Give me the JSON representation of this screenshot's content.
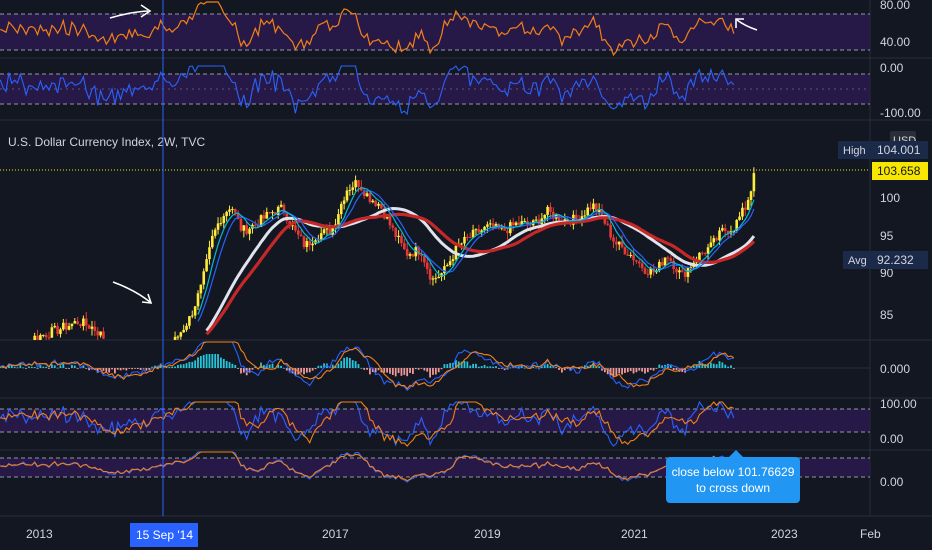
{
  "chart_data": {
    "type": "candlestick",
    "title": "U.S. Dollar Currency Index, 2W, TVC",
    "currency": "USD",
    "x_ticks": [
      "2013",
      "2017",
      "2019",
      "2021",
      "2023",
      "Feb"
    ],
    "crosshair_date": "15 Sep '14",
    "main_y_ticks": [
      85.0,
      90.0,
      95.0,
      100.0
    ],
    "main_ylim": [
      81.5,
      106.3
    ],
    "badges": [
      {
        "label": "High",
        "value": "104.001",
        "color": "#2a2e39"
      },
      {
        "label": "",
        "value": "103.658",
        "color": "#f7e600"
      },
      {
        "label": "Avg",
        "value": "92.232",
        "color": "#2a2e39"
      }
    ],
    "price_series": [
      {
        "t": 2012.1,
        "v": 80.0
      },
      {
        "t": 2012.6,
        "v": 81.5
      },
      {
        "t": 2013.0,
        "v": 82.8
      },
      {
        "t": 2013.3,
        "v": 84.0
      },
      {
        "t": 2013.5,
        "v": 83.2
      },
      {
        "t": 2013.8,
        "v": 80.5
      },
      {
        "t": 2014.2,
        "v": 79.8
      },
      {
        "t": 2014.6,
        "v": 81.5
      },
      {
        "t": 2014.8,
        "v": 84.5
      },
      {
        "t": 2014.95,
        "v": 88.5
      },
      {
        "t": 2015.1,
        "v": 95.0
      },
      {
        "t": 2015.2,
        "v": 97.5
      },
      {
        "t": 2015.35,
        "v": 99.5
      },
      {
        "t": 2015.5,
        "v": 96.0
      },
      {
        "t": 2015.7,
        "v": 97.0
      },
      {
        "t": 2015.9,
        "v": 98.5
      },
      {
        "t": 2016.05,
        "v": 99.0
      },
      {
        "t": 2016.2,
        "v": 96.0
      },
      {
        "t": 2016.35,
        "v": 94.0
      },
      {
        "t": 2016.5,
        "v": 95.5
      },
      {
        "t": 2016.7,
        "v": 96.0
      },
      {
        "t": 2016.9,
        "v": 101.5
      },
      {
        "t": 2017.05,
        "v": 102.5
      },
      {
        "t": 2017.2,
        "v": 100.5
      },
      {
        "t": 2017.35,
        "v": 99.5
      },
      {
        "t": 2017.5,
        "v": 96.5
      },
      {
        "t": 2017.7,
        "v": 93.0
      },
      {
        "t": 2017.9,
        "v": 93.5
      },
      {
        "t": 2018.05,
        "v": 89.5
      },
      {
        "t": 2018.2,
        "v": 90.5
      },
      {
        "t": 2018.4,
        "v": 94.0
      },
      {
        "t": 2018.6,
        "v": 95.5
      },
      {
        "t": 2018.8,
        "v": 96.5
      },
      {
        "t": 2019.0,
        "v": 96.0
      },
      {
        "t": 2019.2,
        "v": 97.0
      },
      {
        "t": 2019.4,
        "v": 96.8
      },
      {
        "t": 2019.6,
        "v": 98.5
      },
      {
        "t": 2019.8,
        "v": 97.5
      },
      {
        "t": 2020.0,
        "v": 97.5
      },
      {
        "t": 2020.2,
        "v": 99.5
      },
      {
        "t": 2020.35,
        "v": 97.5
      },
      {
        "t": 2020.5,
        "v": 94.5
      },
      {
        "t": 2020.7,
        "v": 93.0
      },
      {
        "t": 2020.9,
        "v": 91.0
      },
      {
        "t": 2021.05,
        "v": 90.5
      },
      {
        "t": 2021.2,
        "v": 93.0
      },
      {
        "t": 2021.4,
        "v": 90.0
      },
      {
        "t": 2021.6,
        "v": 92.5
      },
      {
        "t": 2021.8,
        "v": 94.0
      },
      {
        "t": 2021.95,
        "v": 96.0
      },
      {
        "t": 2022.1,
        "v": 96.5
      },
      {
        "t": 2022.25,
        "v": 99.0
      },
      {
        "t": 2022.4,
        "v": 103.658
      }
    ],
    "rsi_panel": {
      "ticks": [
        "80.00",
        "40.00"
      ],
      "ylim": [
        20,
        100
      ],
      "bands": [
        70,
        30
      ]
    },
    "wpr_panel": {
      "ticks": [
        "0.00",
        "-100.00"
      ],
      "ylim": [
        -100,
        0
      ],
      "bands": [
        -20,
        -80
      ]
    },
    "macd_panel": {
      "ticks": [
        "0.000"
      ]
    },
    "stoch_panel": {
      "ticks": [
        "100.00",
        "0.00"
      ],
      "ylim": [
        0,
        100
      ],
      "bands": [
        80,
        20
      ]
    },
    "last_panel": {
      "ticks": [
        "0.00"
      ]
    },
    "annotation": [
      "close below 101.76629",
      "to cross down"
    ]
  }
}
